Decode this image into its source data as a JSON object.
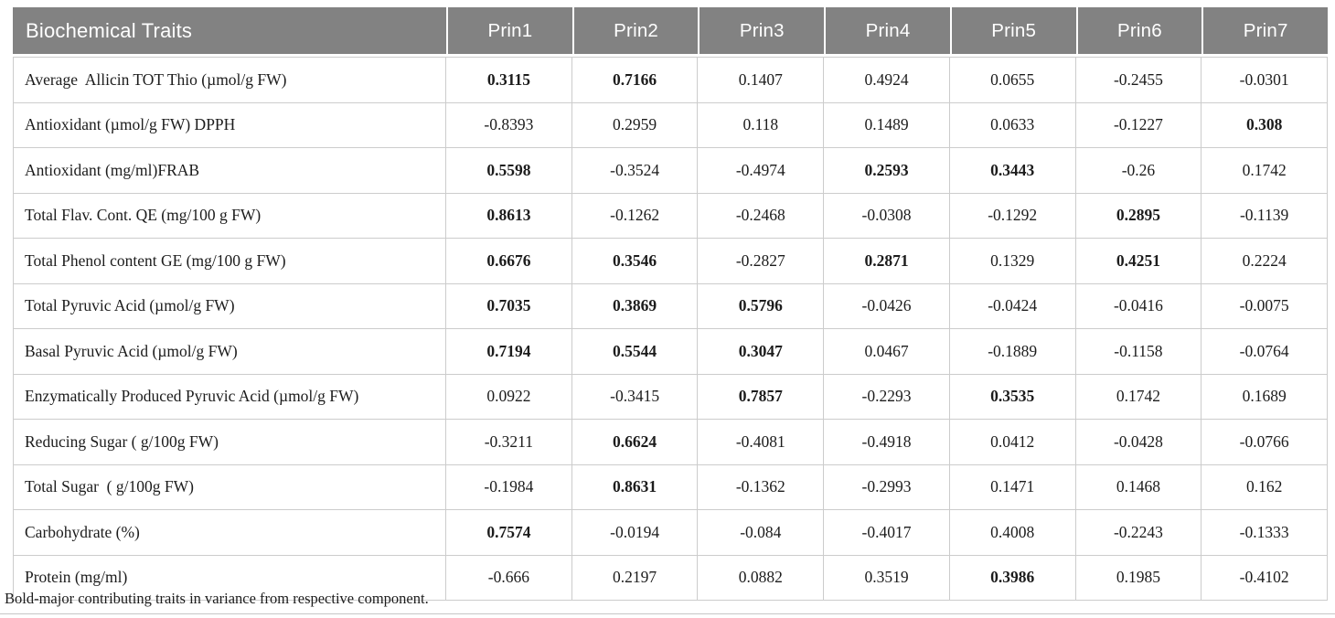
{
  "colors": {
    "header_bg": "#828282",
    "header_text": "#ffffff",
    "grid_border": "#cccccc",
    "body_text": "#1c1c1c"
  },
  "table": {
    "header": {
      "trait_column_label": "Biochemical Traits",
      "component_labels": [
        "Prin1",
        "Prin2",
        "Prin3",
        "Prin4",
        "Prin5",
        "Prin6",
        "Prin7"
      ]
    },
    "rows": [
      {
        "trait": "Average  Allicin TOT Thio (µmol/g FW)",
        "values": [
          "0.3115",
          "0.7166",
          "0.1407",
          "0.4924",
          "0.0655",
          "-0.2455",
          "-0.0301"
        ],
        "bold": [
          1,
          1,
          0,
          0,
          0,
          0,
          0
        ]
      },
      {
        "trait": "Antioxidant (µmol/g FW) DPPH",
        "values": [
          "-0.8393",
          "0.2959",
          "0.118",
          "0.1489",
          "0.0633",
          "-0.1227",
          "0.308"
        ],
        "bold": [
          0,
          0,
          0,
          0,
          0,
          0,
          1
        ]
      },
      {
        "trait": "Antioxidant (mg/ml)FRAB",
        "values": [
          "0.5598",
          "-0.3524",
          "-0.4974",
          "0.2593",
          "0.3443",
          "-0.26",
          "0.1742"
        ],
        "bold": [
          1,
          0,
          0,
          1,
          1,
          0,
          0
        ]
      },
      {
        "trait": "Total Flav. Cont. QE (mg/100 g FW)",
        "values": [
          "0.8613",
          "-0.1262",
          "-0.2468",
          "-0.0308",
          "-0.1292",
          "0.2895",
          "-0.1139"
        ],
        "bold": [
          1,
          0,
          0,
          0,
          0,
          1,
          0
        ]
      },
      {
        "trait": "Total Phenol content GE (mg/100 g FW)",
        "values": [
          "0.6676",
          "0.3546",
          "-0.2827",
          "0.2871",
          "0.1329",
          "0.4251",
          "0.2224"
        ],
        "bold": [
          1,
          1,
          0,
          1,
          0,
          1,
          0
        ]
      },
      {
        "trait": "Total Pyruvic Acid (µmol/g FW)",
        "values": [
          "0.7035",
          "0.3869",
          "0.5796",
          "-0.0426",
          "-0.0424",
          "-0.0416",
          "-0.0075"
        ],
        "bold": [
          1,
          1,
          1,
          0,
          0,
          0,
          0
        ]
      },
      {
        "trait": "Basal Pyruvic Acid (µmol/g FW)",
        "values": [
          "0.7194",
          "0.5544",
          "0.3047",
          "0.0467",
          "-0.1889",
          "-0.1158",
          "-0.0764"
        ],
        "bold": [
          1,
          1,
          1,
          0,
          0,
          0,
          0
        ]
      },
      {
        "trait": "Enzymatically Produced Pyruvic Acid (µmol/g FW)",
        "values": [
          "0.0922",
          "-0.3415",
          "0.7857",
          "-0.2293",
          "0.3535",
          "0.1742",
          "0.1689"
        ],
        "bold": [
          0,
          0,
          1,
          0,
          1,
          0,
          0
        ]
      },
      {
        "trait": "Reducing Sugar ( g/100g FW)",
        "values": [
          "-0.3211",
          "0.6624",
          "-0.4081",
          "-0.4918",
          "0.0412",
          "-0.0428",
          "-0.0766"
        ],
        "bold": [
          0,
          1,
          0,
          0,
          0,
          0,
          0
        ]
      },
      {
        "trait": "Total Sugar  ( g/100g FW)",
        "values": [
          "-0.1984",
          "0.8631",
          "-0.1362",
          "-0.2993",
          "0.1471",
          "0.1468",
          "0.162"
        ],
        "bold": [
          0,
          1,
          0,
          0,
          0,
          0,
          0
        ]
      },
      {
        "trait": "Carbohydrate (%)",
        "values": [
          "0.7574",
          "-0.0194",
          "-0.084",
          "-0.4017",
          "0.4008",
          "-0.2243",
          "-0.1333"
        ],
        "bold": [
          1,
          0,
          0,
          0,
          0,
          0,
          0
        ]
      },
      {
        "trait": "Protein (mg/ml)",
        "values": [
          "-0.666",
          "0.2197",
          "0.0882",
          "0.3519",
          "0.3986",
          "0.1985",
          "-0.4102"
        ],
        "bold": [
          0,
          0,
          0,
          0,
          1,
          0,
          0
        ]
      }
    ]
  },
  "footnote": "Bold-major contributing traits in variance from respective component."
}
